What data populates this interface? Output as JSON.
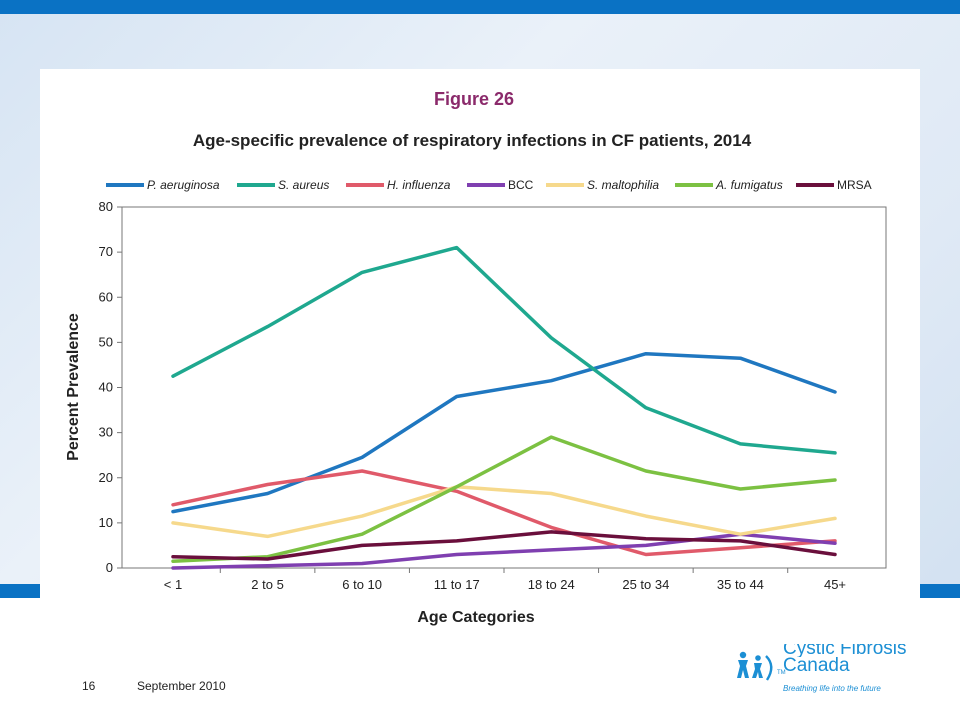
{
  "slide": {
    "page_number": "16",
    "date": "September 2010",
    "logo_name_line1": "Cystic Fibrosis",
    "logo_name_line2": "Canada",
    "logo_tagline": "Breathing life into the future",
    "logo_tm": "TM"
  },
  "chart_data": {
    "type": "line",
    "figure_label": "Figure 26",
    "title": "Age-specific prevalence of respiratory infections in CF patients, 2014",
    "xlabel": "Age Categories",
    "ylabel": "Percent Prevalence",
    "categories": [
      "< 1",
      "2 to 5",
      "6 to 10",
      "11 to 17",
      "18 to 24",
      "25 to 34",
      "35 to 44",
      "45+"
    ],
    "ylim": [
      0,
      80
    ],
    "yticks": [
      0,
      10,
      20,
      30,
      40,
      50,
      60,
      70,
      80
    ],
    "legend_position": "top",
    "grid": false,
    "series": [
      {
        "name": "P. aeruginosa",
        "color": "#1f77c0",
        "values": [
          12.5,
          16.5,
          24.5,
          38,
          41.5,
          47.5,
          46.5,
          39
        ]
      },
      {
        "name": "S. aureus",
        "color": "#1fa88f",
        "values": [
          42.5,
          53.5,
          65.5,
          71,
          51,
          35.5,
          27.5,
          25.5
        ]
      },
      {
        "name": "H. influenza",
        "color": "#e05a6a",
        "values": [
          14,
          18.5,
          21.5,
          17,
          9,
          3,
          4.5,
          6
        ]
      },
      {
        "name": "BCC",
        "color": "#7f3fb0",
        "values": [
          0,
          0.5,
          1,
          3,
          4,
          5,
          7.5,
          5.5
        ]
      },
      {
        "name": "S. maltophilia",
        "color": "#f6d98c",
        "values": [
          10,
          7,
          11.5,
          18,
          16.5,
          11.5,
          7.5,
          11
        ]
      },
      {
        "name": "A. fumigatus",
        "color": "#7cc142",
        "values": [
          1.5,
          2.5,
          7.5,
          18,
          29,
          21.5,
          17.5,
          19.5
        ]
      },
      {
        "name": "MRSA",
        "color": "#6a0f3c",
        "values": [
          2.5,
          2,
          5,
          6,
          8,
          6.5,
          6,
          3
        ]
      }
    ]
  }
}
